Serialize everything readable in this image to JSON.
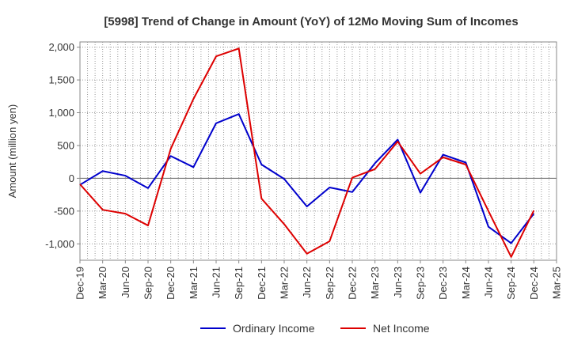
{
  "chart_data": {
    "type": "line",
    "title": "[5998]  Trend of Change in Amount (YoY) of 12Mo Moving Sum of Incomes",
    "xlabel": "",
    "ylabel": "Amount (million yen)",
    "ylim": [
      -1250,
      2080
    ],
    "yticks": [
      2000,
      1500,
      1000,
      500,
      0,
      -500,
      -1000
    ],
    "ytick_labels": [
      "2,000",
      "1,500",
      "1,000",
      "500",
      "0",
      "-500",
      "-1,000"
    ],
    "grid": true,
    "legend_position": "bottom-center",
    "categories": [
      "Dec-19",
      "Mar-20",
      "Jun-20",
      "Sep-20",
      "Dec-20",
      "Mar-21",
      "Jun-21",
      "Sep-21",
      "Dec-21",
      "Mar-22",
      "Jun-22",
      "Sep-22",
      "Dec-22",
      "Mar-23",
      "Jun-23",
      "Sep-23",
      "Dec-23",
      "Mar-24",
      "Jun-24",
      "Sep-24",
      "Dec-24",
      "Mar-25"
    ],
    "series": [
      {
        "name": "Ordinary Income",
        "color": "#0000cc",
        "values": [
          -100,
          110,
          40,
          -150,
          340,
          170,
          840,
          980,
          210,
          -10,
          -430,
          -140,
          -210,
          230,
          590,
          -220,
          360,
          240,
          -740,
          -990,
          -540,
          null
        ]
      },
      {
        "name": "Net Income",
        "color": "#dd0000",
        "values": [
          -90,
          -480,
          -540,
          -720,
          450,
          1210,
          1860,
          1980,
          -310,
          -700,
          -1150,
          -960,
          10,
          140,
          560,
          70,
          320,
          210,
          -500,
          -1200,
          -490,
          null
        ]
      }
    ]
  }
}
